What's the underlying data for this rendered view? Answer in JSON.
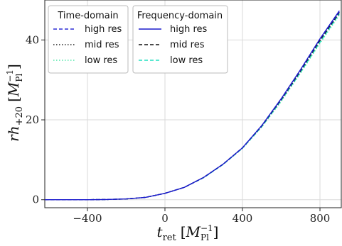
{
  "chart_data": {
    "type": "line",
    "xlabel_main": "t",
    "xlabel_sub": "ret",
    "xlabel_unit": "M",
    "xlabel_unit_sub": "Pl",
    "xlabel_unit_sup": "−1",
    "ylabel_main": "rh",
    "ylabel_sub": "+20",
    "ylabel_unit": "M",
    "ylabel_unit_sub": "Pl",
    "ylabel_unit_sup": "−1",
    "xlim": [
      -620,
      910
    ],
    "ylim": [
      -2,
      50
    ],
    "xticks": [
      -400,
      0,
      400,
      800
    ],
    "xtick_labels": [
      "−400",
      "0",
      "400",
      "800"
    ],
    "yticks": [
      0,
      20,
      40
    ],
    "ytick_labels": [
      "0",
      "20",
      "40"
    ],
    "grid": true,
    "legend_placement": "top-left",
    "legend_groups": [
      {
        "title": "Time-domain",
        "entries": [
          {
            "label": "high res",
            "color": "#2b2bd6",
            "dash": "dashed"
          },
          {
            "label": "mid res",
            "color": "#222222",
            "dash": "dotted"
          },
          {
            "label": "low res",
            "color": "#4fe6a8",
            "dash": "dotted"
          }
        ]
      },
      {
        "title": "Frequency-domain",
        "entries": [
          {
            "label": "high res",
            "color": "#1a1acc",
            "dash": "solid"
          },
          {
            "label": "mid res",
            "color": "#111111",
            "dash": "dashed"
          },
          {
            "label": "low res",
            "color": "#22e0c0",
            "dash": "dashed"
          }
        ]
      }
    ],
    "x": [
      -620,
      -500,
      -400,
      -300,
      -200,
      -100,
      0,
      100,
      200,
      300,
      400,
      500,
      600,
      700,
      800,
      900
    ],
    "series": [
      {
        "name": "Time-domain high res",
        "values": [
          0,
          0,
          0,
          0.05,
          0.2,
          0.6,
          1.6,
          3.1,
          5.6,
          8.9,
          13.0,
          18.6,
          25.2,
          32.5,
          40.2,
          47.1
        ]
      },
      {
        "name": "Time-domain mid res",
        "values": [
          0,
          0,
          0,
          0.05,
          0.2,
          0.6,
          1.6,
          3.1,
          5.6,
          8.9,
          13.0,
          18.5,
          25.0,
          32.2,
          39.8,
          46.8
        ]
      },
      {
        "name": "Time-domain low res",
        "values": [
          0,
          0,
          0,
          0.05,
          0.2,
          0.6,
          1.6,
          3.1,
          5.5,
          8.8,
          12.8,
          18.2,
          24.6,
          31.7,
          39.2,
          46.2
        ]
      },
      {
        "name": "Frequency-domain high res",
        "values": [
          0,
          0,
          0,
          0.05,
          0.2,
          0.6,
          1.6,
          3.1,
          5.6,
          8.9,
          13.0,
          18.6,
          25.3,
          32.6,
          40.3,
          47.3
        ]
      },
      {
        "name": "Frequency-domain mid res",
        "values": [
          0,
          0,
          0,
          0.05,
          0.2,
          0.6,
          1.6,
          3.1,
          5.6,
          8.9,
          13.0,
          18.5,
          25.1,
          32.3,
          39.9,
          46.9
        ]
      },
      {
        "name": "Frequency-domain low res",
        "values": [
          0,
          0,
          0,
          0.05,
          0.2,
          0.6,
          1.6,
          3.1,
          5.5,
          8.8,
          12.9,
          18.3,
          24.8,
          31.9,
          39.4,
          46.5
        ]
      }
    ]
  }
}
